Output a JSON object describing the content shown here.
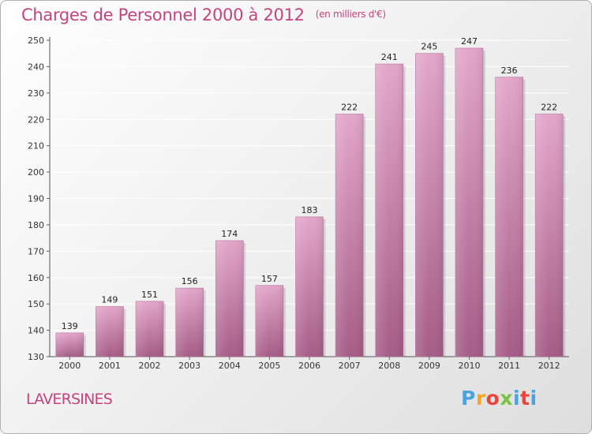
{
  "header": {
    "title": "Charges de Personnel 2000 à 2012",
    "subtitle": "(en milliers d'€)"
  },
  "commune": "LAVERSINES",
  "logo": {
    "letters": [
      "P",
      "r",
      "o",
      "x",
      "i",
      "t",
      "i"
    ],
    "colors": [
      "#4aa3df",
      "#f5a623",
      "#e8463c",
      "#7cc242",
      "#4aa3df",
      "#e8463c",
      "#4aa3df"
    ]
  },
  "chart_data": {
    "type": "bar",
    "categories": [
      "2000",
      "2001",
      "2002",
      "2003",
      "2004",
      "2005",
      "2006",
      "2007",
      "2008",
      "2009",
      "2010",
      "2011",
      "2012"
    ],
    "values": [
      139,
      149,
      151,
      156,
      174,
      157,
      183,
      222,
      241,
      245,
      247,
      236,
      222
    ],
    "ylim": [
      130,
      250
    ],
    "yticks": [
      130,
      140,
      150,
      160,
      170,
      180,
      190,
      200,
      210,
      220,
      230,
      240,
      250
    ],
    "grid": true,
    "bar_color": "#d98fb9",
    "bar_color_dark": "#a8567f"
  }
}
